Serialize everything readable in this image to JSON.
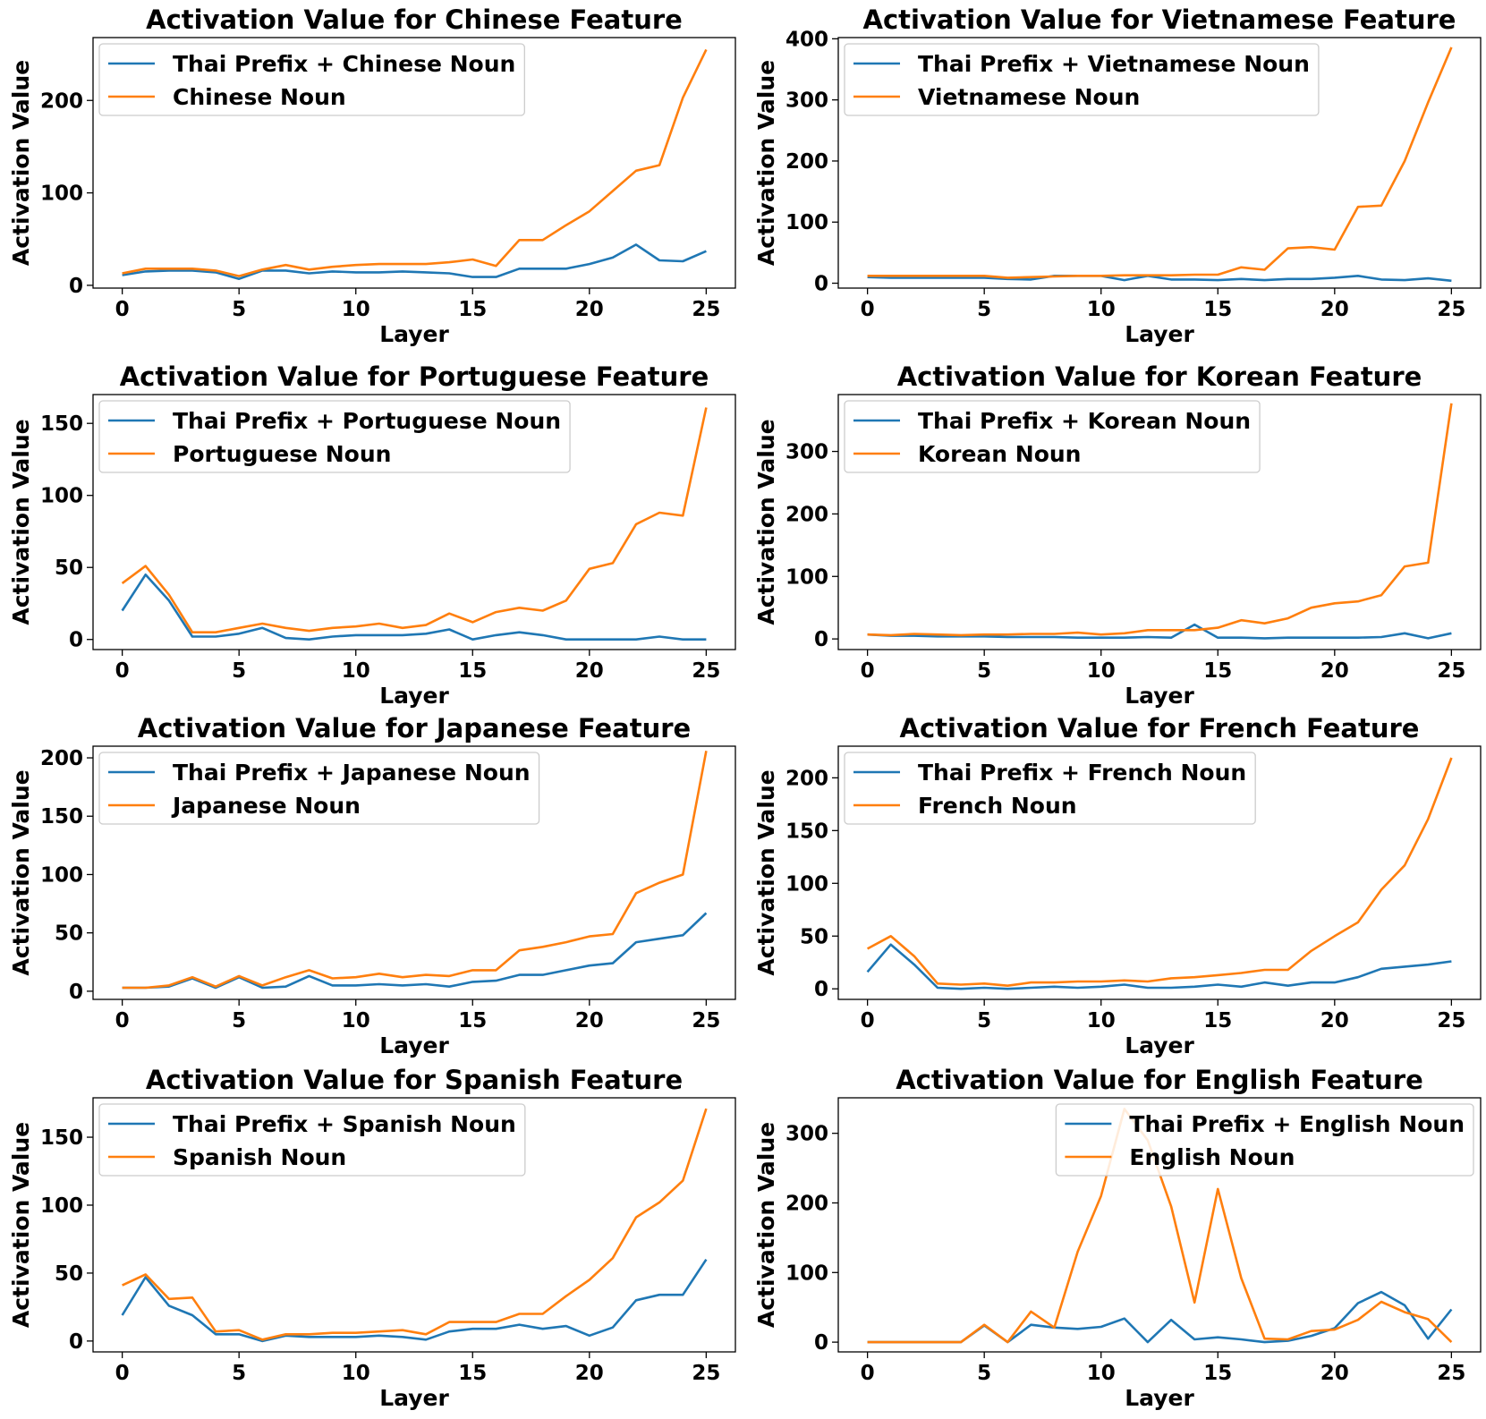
{
  "chart_data": [
    {
      "type": "line",
      "title": "Activation Value for Chinese Feature",
      "xlabel": "Layer",
      "ylabel": "Activation Value",
      "xlim": [
        -1.25,
        26.25
      ],
      "ylim": [
        -3,
        268
      ],
      "xticks": [
        0,
        5,
        10,
        15,
        20,
        25
      ],
      "yticks": [
        0,
        100,
        200
      ],
      "legend": "upper-left",
      "grid": false,
      "x": [
        0,
        1,
        2,
        3,
        4,
        5,
        6,
        7,
        8,
        9,
        10,
        11,
        12,
        13,
        14,
        15,
        16,
        17,
        18,
        19,
        20,
        21,
        22,
        23,
        24,
        25
      ],
      "series": [
        {
          "name": "Thai Prefix + Chinese Noun",
          "color": "#1f77b4",
          "values": [
            11,
            15,
            16,
            16,
            14,
            7,
            16,
            16,
            13,
            15,
            14,
            14,
            15,
            14,
            13,
            9,
            9,
            18,
            18,
            18,
            23,
            30,
            44,
            27,
            26,
            37
          ]
        },
        {
          "name": "Chinese Noun",
          "color": "#ff7f0e",
          "values": [
            13,
            18,
            18,
            18,
            16,
            10,
            17,
            22,
            17,
            20,
            22,
            23,
            23,
            23,
            25,
            28,
            21,
            49,
            49,
            65,
            80,
            102,
            124,
            130,
            203,
            255
          ]
        }
      ]
    },
    {
      "type": "line",
      "title": "Activation Value for Vietnamese Feature",
      "xlabel": "Layer",
      "ylabel": "Activation Value",
      "xlim": [
        -1.25,
        26.25
      ],
      "ylim": [
        -8,
        402
      ],
      "xticks": [
        0,
        5,
        10,
        15,
        20,
        25
      ],
      "yticks": [
        0,
        100,
        200,
        300,
        400
      ],
      "legend": "upper-left",
      "grid": false,
      "x": [
        0,
        1,
        2,
        3,
        4,
        5,
        6,
        7,
        8,
        9,
        10,
        11,
        12,
        13,
        14,
        15,
        16,
        17,
        18,
        19,
        20,
        21,
        22,
        23,
        24,
        25
      ],
      "series": [
        {
          "name": "Thai Prefix + Vietnamese Noun",
          "color": "#1f77b4",
          "values": [
            10,
            9,
            9,
            9,
            9,
            9,
            7,
            6,
            12,
            12,
            12,
            5,
            12,
            6,
            6,
            5,
            7,
            5,
            7,
            7,
            9,
            12,
            6,
            5,
            8,
            4
          ]
        },
        {
          "name": "Vietnamese Noun",
          "color": "#ff7f0e",
          "values": [
            12,
            12,
            12,
            12,
            12,
            12,
            9,
            10,
            11,
            12,
            12,
            13,
            13,
            13,
            14,
            14,
            26,
            22,
            57,
            59,
            55,
            125,
            127,
            200,
            296,
            386
          ]
        }
      ]
    },
    {
      "type": "line",
      "title": "Activation Value for Portuguese Feature",
      "xlabel": "Layer",
      "ylabel": "Activation Value",
      "xlim": [
        -1.25,
        26.25
      ],
      "ylim": [
        -7,
        170
      ],
      "xticks": [
        0,
        5,
        10,
        15,
        20,
        25
      ],
      "yticks": [
        0,
        50,
        100,
        150
      ],
      "legend": "upper-left",
      "grid": false,
      "x": [
        0,
        1,
        2,
        3,
        4,
        5,
        6,
        7,
        8,
        9,
        10,
        11,
        12,
        13,
        14,
        15,
        16,
        17,
        18,
        19,
        20,
        21,
        22,
        23,
        24,
        25
      ],
      "series": [
        {
          "name": "Thai Prefix + Portuguese Noun",
          "color": "#1f77b4",
          "values": [
            20,
            45,
            27,
            2,
            2,
            4,
            8,
            1,
            0,
            2,
            3,
            3,
            3,
            4,
            7,
            0,
            3,
            5,
            3,
            0,
            0,
            0,
            0,
            2,
            0,
            0
          ]
        },
        {
          "name": "Portuguese Noun",
          "color": "#ff7f0e",
          "values": [
            39,
            51,
            31,
            5,
            5,
            8,
            11,
            8,
            6,
            8,
            9,
            11,
            8,
            10,
            18,
            12,
            19,
            22,
            20,
            27,
            49,
            53,
            80,
            88,
            86,
            161
          ]
        }
      ]
    },
    {
      "type": "line",
      "title": "Activation Value for Korean Feature",
      "xlabel": "Layer",
      "ylabel": "Activation Value",
      "xlim": [
        -1.25,
        26.25
      ],
      "ylim": [
        -17,
        391
      ],
      "xticks": [
        0,
        5,
        10,
        15,
        20,
        25
      ],
      "yticks": [
        0,
        100,
        200,
        300
      ],
      "legend": "upper-left",
      "grid": false,
      "x": [
        0,
        1,
        2,
        3,
        4,
        5,
        6,
        7,
        8,
        9,
        10,
        11,
        12,
        13,
        14,
        15,
        16,
        17,
        18,
        19,
        20,
        21,
        22,
        23,
        24,
        25
      ],
      "series": [
        {
          "name": "Thai Prefix + Korean Noun",
          "color": "#1f77b4",
          "values": [
            7,
            5,
            5,
            4,
            4,
            4,
            3,
            3,
            3,
            2,
            2,
            2,
            3,
            2,
            23,
            2,
            2,
            1,
            2,
            2,
            2,
            2,
            3,
            9,
            1,
            9
          ]
        },
        {
          "name": "Korean Noun",
          "color": "#ff7f0e",
          "values": [
            7,
            6,
            8,
            7,
            6,
            7,
            7,
            8,
            8,
            10,
            7,
            9,
            14,
            14,
            14,
            18,
            30,
            25,
            33,
            50,
            57,
            60,
            70,
            116,
            122,
            377
          ]
        }
      ]
    },
    {
      "type": "line",
      "title": "Activation Value for Japanese Feature",
      "xlabel": "Layer",
      "ylabel": "Activation Value",
      "xlim": [
        -1.25,
        26.25
      ],
      "ylim": [
        -7,
        210
      ],
      "xticks": [
        0,
        5,
        10,
        15,
        20,
        25
      ],
      "yticks": [
        0,
        50,
        100,
        150,
        200
      ],
      "legend": "upper-left",
      "grid": false,
      "x": [
        0,
        1,
        2,
        3,
        4,
        5,
        6,
        7,
        8,
        9,
        10,
        11,
        12,
        13,
        14,
        15,
        16,
        17,
        18,
        19,
        20,
        21,
        22,
        23,
        24,
        25
      ],
      "series": [
        {
          "name": "Thai Prefix + Japanese Noun",
          "color": "#1f77b4",
          "values": [
            3,
            3,
            4,
            11,
            3,
            12,
            3,
            4,
            13,
            5,
            5,
            6,
            5,
            6,
            4,
            8,
            9,
            14,
            14,
            18,
            22,
            24,
            42,
            45,
            48,
            67
          ]
        },
        {
          "name": "Japanese Noun",
          "color": "#ff7f0e",
          "values": [
            3,
            3,
            5,
            12,
            4,
            13,
            5,
            12,
            18,
            11,
            12,
            15,
            12,
            14,
            13,
            18,
            18,
            35,
            38,
            42,
            47,
            49,
            84,
            93,
            100,
            206
          ]
        }
      ]
    },
    {
      "type": "line",
      "title": "Activation Value for French Feature",
      "xlabel": "Layer",
      "ylabel": "Activation Value",
      "xlim": [
        -1.25,
        26.25
      ],
      "ylim": [
        -10,
        230
      ],
      "xticks": [
        0,
        5,
        10,
        15,
        20,
        25
      ],
      "yticks": [
        0,
        50,
        100,
        150,
        200
      ],
      "legend": "upper-left",
      "grid": false,
      "x": [
        0,
        1,
        2,
        3,
        4,
        5,
        6,
        7,
        8,
        9,
        10,
        11,
        12,
        13,
        14,
        15,
        16,
        17,
        18,
        19,
        20,
        21,
        22,
        23,
        24,
        25
      ],
      "series": [
        {
          "name": "Thai Prefix + French Noun",
          "color": "#1f77b4",
          "values": [
            16,
            42,
            23,
            1,
            0,
            1,
            0,
            1,
            2,
            1,
            2,
            4,
            1,
            1,
            2,
            4,
            2,
            6,
            3,
            6,
            6,
            11,
            19,
            21,
            23,
            26
          ]
        },
        {
          "name": "French Noun",
          "color": "#ff7f0e",
          "values": [
            38,
            50,
            31,
            5,
            4,
            5,
            3,
            6,
            6,
            7,
            7,
            8,
            7,
            10,
            11,
            13,
            15,
            18,
            18,
            36,
            50,
            63,
            94,
            117,
            161,
            219
          ]
        }
      ]
    },
    {
      "type": "line",
      "title": "Activation Value for Spanish Feature",
      "xlabel": "Layer",
      "ylabel": "Activation Value",
      "xlim": [
        -1.25,
        26.25
      ],
      "ylim": [
        -8,
        179
      ],
      "xticks": [
        0,
        5,
        10,
        15,
        20,
        25
      ],
      "yticks": [
        0,
        50,
        100,
        150
      ],
      "legend": "upper-left",
      "grid": false,
      "x": [
        0,
        1,
        2,
        3,
        4,
        5,
        6,
        7,
        8,
        9,
        10,
        11,
        12,
        13,
        14,
        15,
        16,
        17,
        18,
        19,
        20,
        21,
        22,
        23,
        24,
        25
      ],
      "series": [
        {
          "name": "Thai Prefix + Spanish Noun",
          "color": "#1f77b4",
          "values": [
            19,
            47,
            26,
            19,
            5,
            5,
            0,
            4,
            3,
            3,
            3,
            4,
            3,
            1,
            7,
            9,
            9,
            12,
            9,
            11,
            4,
            10,
            30,
            34,
            34,
            60
          ]
        },
        {
          "name": "Spanish Noun",
          "color": "#ff7f0e",
          "values": [
            41,
            49,
            31,
            32,
            7,
            8,
            1,
            5,
            5,
            6,
            6,
            7,
            8,
            5,
            14,
            14,
            14,
            20,
            20,
            33,
            45,
            61,
            91,
            102,
            118,
            171
          ]
        }
      ]
    },
    {
      "type": "line",
      "title": "Activation Value for English Feature",
      "xlabel": "Layer",
      "ylabel": "Activation Value",
      "xlim": [
        -1.25,
        26.25
      ],
      "ylim": [
        -14,
        351
      ],
      "xticks": [
        0,
        5,
        10,
        15,
        20,
        25
      ],
      "yticks": [
        0,
        100,
        200,
        300
      ],
      "legend": "upper-right",
      "grid": false,
      "x": [
        0,
        1,
        2,
        3,
        4,
        5,
        6,
        7,
        8,
        9,
        10,
        11,
        12,
        13,
        14,
        15,
        16,
        17,
        18,
        19,
        20,
        21,
        22,
        23,
        24,
        25
      ],
      "series": [
        {
          "name": "Thai Prefix + English Noun",
          "color": "#1f77b4",
          "values": [
            0,
            0,
            0,
            0,
            0,
            24,
            0,
            25,
            21,
            19,
            22,
            34,
            0,
            32,
            4,
            7,
            4,
            0,
            2,
            9,
            20,
            56,
            72,
            53,
            5,
            47
          ]
        },
        {
          "name": "English Noun",
          "color": "#ff7f0e",
          "values": [
            0,
            0,
            0,
            0,
            0,
            25,
            0,
            44,
            21,
            130,
            210,
            335,
            290,
            195,
            57,
            220,
            92,
            5,
            4,
            16,
            18,
            32,
            58,
            43,
            33,
            0
          ]
        }
      ]
    }
  ]
}
